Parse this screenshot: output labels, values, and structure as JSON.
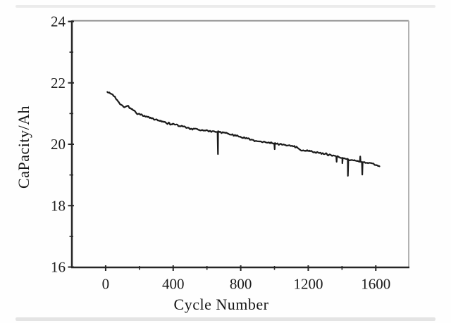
{
  "figure": {
    "background": "#fefefe",
    "curve_color": "#1a1a1a",
    "axis_color": "#262626",
    "box_top_color": "#8a8a8a",
    "box_right_color": "#b2b2b2",
    "label_color": "#1c1c1c"
  },
  "chart_data": {
    "type": "line",
    "title": "",
    "xlabel": "Cycle Number",
    "ylabel": "CaPacity/Ah",
    "xlim": [
      -200,
      1795
    ],
    "ylim": [
      16,
      24
    ],
    "grid": false,
    "legend": null,
    "x_major_ticks": [
      0,
      400,
      800,
      1200,
      1600
    ],
    "x_major_tick_labels": [
      "0",
      "400",
      "800",
      "1200",
      "1600"
    ],
    "x_minor_ticks": [
      200,
      600,
      1000,
      1400,
      1800
    ],
    "y_major_ticks": [
      16,
      18,
      20,
      22,
      24
    ],
    "y_major_tick_labels": [
      "16",
      "18",
      "20",
      "22",
      "24"
    ],
    "y_minor_ticks": [
      17,
      19,
      21,
      23
    ],
    "series": [
      {
        "name": "capacity-vs-cycle",
        "color": "#1a1a1a",
        "stroke_width": 2.2,
        "cycle_range": [
          10,
          1625
        ],
        "cycle_step": 4,
        "noise_band_ah": 0.022,
        "anchors": [
          [
            10,
            21.7
          ],
          [
            25,
            21.68
          ],
          [
            40,
            21.62
          ],
          [
            55,
            21.52
          ],
          [
            70,
            21.42
          ],
          [
            85,
            21.3
          ],
          [
            100,
            21.26
          ],
          [
            115,
            21.22
          ],
          [
            130,
            21.24
          ],
          [
            145,
            21.19
          ],
          [
            165,
            21.1
          ],
          [
            180,
            21.03
          ],
          [
            200,
            20.98
          ],
          [
            230,
            20.92
          ],
          [
            260,
            20.86
          ],
          [
            290,
            20.8
          ],
          [
            320,
            20.77
          ],
          [
            350,
            20.71
          ],
          [
            380,
            20.67
          ],
          [
            420,
            20.63
          ],
          [
            460,
            20.57
          ],
          [
            500,
            20.53
          ],
          [
            540,
            20.48
          ],
          [
            580,
            20.45
          ],
          [
            620,
            20.43
          ],
          [
            665,
            20.4
          ],
          [
            700,
            20.39
          ],
          [
            730,
            20.34
          ],
          [
            765,
            20.3
          ],
          [
            800,
            20.25
          ],
          [
            830,
            20.2
          ],
          [
            860,
            20.15
          ],
          [
            900,
            20.1
          ],
          [
            940,
            20.07
          ],
          [
            980,
            20.05
          ],
          [
            1020,
            20.01
          ],
          [
            1060,
            19.98
          ],
          [
            1100,
            19.95
          ],
          [
            1130,
            19.9
          ],
          [
            1160,
            19.81
          ],
          [
            1200,
            19.79
          ],
          [
            1240,
            19.74
          ],
          [
            1280,
            19.71
          ],
          [
            1320,
            19.66
          ],
          [
            1360,
            19.61
          ],
          [
            1400,
            19.55
          ],
          [
            1440,
            19.5
          ],
          [
            1480,
            19.46
          ],
          [
            1520,
            19.42
          ],
          [
            1555,
            19.39
          ],
          [
            1585,
            19.36
          ],
          [
            1605,
            19.33
          ],
          [
            1618,
            19.29
          ],
          [
            1625,
            19.26
          ]
        ],
        "spikes": [
          {
            "cycle": 665,
            "value": 19.68
          },
          {
            "cycle": 1001,
            "value": 19.84
          },
          {
            "cycle": 1368,
            "value": 19.43
          },
          {
            "cycle": 1402,
            "value": 19.38
          },
          {
            "cycle": 1435,
            "value": 18.97
          },
          {
            "cycle": 1508,
            "value": 19.6
          },
          {
            "cycle": 1520,
            "value": 19.01
          }
        ]
      }
    ]
  }
}
